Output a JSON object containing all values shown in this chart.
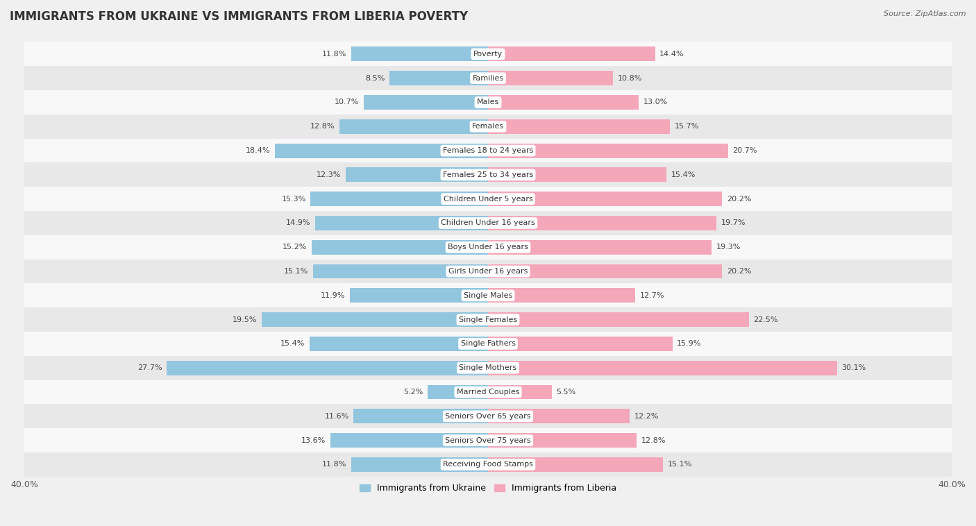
{
  "title": "IMMIGRANTS FROM UKRAINE VS IMMIGRANTS FROM LIBERIA POVERTY",
  "source": "Source: ZipAtlas.com",
  "categories": [
    "Poverty",
    "Families",
    "Males",
    "Females",
    "Females 18 to 24 years",
    "Females 25 to 34 years",
    "Children Under 5 years",
    "Children Under 16 years",
    "Boys Under 16 years",
    "Girls Under 16 years",
    "Single Males",
    "Single Females",
    "Single Fathers",
    "Single Mothers",
    "Married Couples",
    "Seniors Over 65 years",
    "Seniors Over 75 years",
    "Receiving Food Stamps"
  ],
  "ukraine_values": [
    11.8,
    8.5,
    10.7,
    12.8,
    18.4,
    12.3,
    15.3,
    14.9,
    15.2,
    15.1,
    11.9,
    19.5,
    15.4,
    27.7,
    5.2,
    11.6,
    13.6,
    11.8
  ],
  "liberia_values": [
    14.4,
    10.8,
    13.0,
    15.7,
    20.7,
    15.4,
    20.2,
    19.7,
    19.3,
    20.2,
    12.7,
    22.5,
    15.9,
    30.1,
    5.5,
    12.2,
    12.8,
    15.1
  ],
  "ukraine_color": "#92c5de",
  "liberia_color": "#f4a7b9",
  "ukraine_label": "Immigrants from Ukraine",
  "liberia_label": "Immigrants from Liberia",
  "xlim": 40.0,
  "bar_height": 0.6,
  "bg_color": "#f0f0f0",
  "row_color_light": "#f8f8f8",
  "row_color_dark": "#e8e8e8",
  "title_fontsize": 12,
  "label_fontsize": 8.0,
  "value_fontsize": 8.0,
  "axis_label_fontsize": 9,
  "legend_fontsize": 9
}
